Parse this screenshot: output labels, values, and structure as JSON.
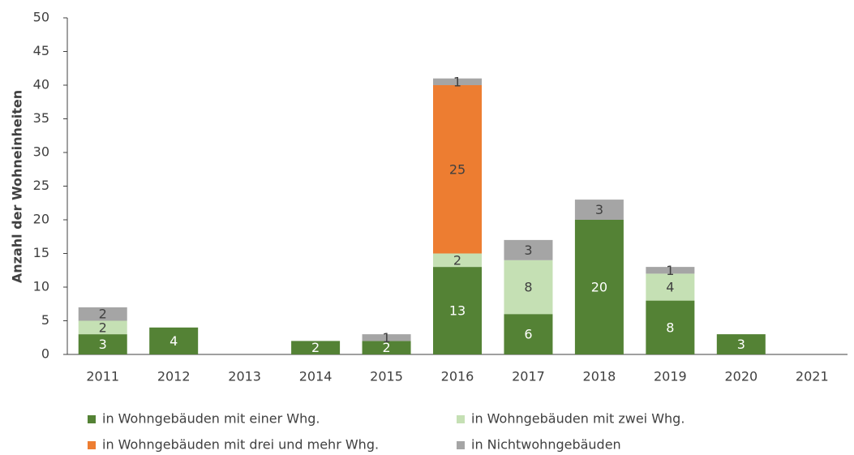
{
  "chart_data": {
    "type": "stacked_bar",
    "y_axis_label": "Anzahl der Wohneinheiten",
    "categories": [
      "2011",
      "2012",
      "2013",
      "2014",
      "2015",
      "2016",
      "2017",
      "2018",
      "2019",
      "2020",
      "2021"
    ],
    "series": [
      {
        "name": "in Wohngebäuden mit einer Whg.",
        "color": "#548235",
        "label_color": "#ffffff",
        "values": [
          3,
          4,
          null,
          2,
          2,
          13,
          6,
          20,
          8,
          3,
          null
        ]
      },
      {
        "name": "in Wohngebäuden mit zwei Whg.",
        "color": "#c5e0b4",
        "label_color": "#404040",
        "values": [
          2,
          null,
          null,
          null,
          null,
          2,
          8,
          null,
          4,
          null,
          null
        ]
      },
      {
        "name": "in Wohngebäuden mit drei und mehr Whg.",
        "color": "#ed7d31",
        "label_color": "#404040",
        "values": [
          null,
          null,
          null,
          null,
          null,
          25,
          null,
          null,
          null,
          null,
          null
        ]
      },
      {
        "name": "in Nichtwohngebäuden",
        "color": "#a5a5a5",
        "label_color": "#404040",
        "values": [
          2,
          null,
          null,
          null,
          1,
          1,
          3,
          3,
          1,
          null,
          null
        ]
      }
    ],
    "ylim": [
      0,
      50
    ],
    "yticks": [
      0,
      5,
      10,
      15,
      20,
      25,
      30,
      35,
      40,
      45,
      50
    ],
    "grid": false
  }
}
